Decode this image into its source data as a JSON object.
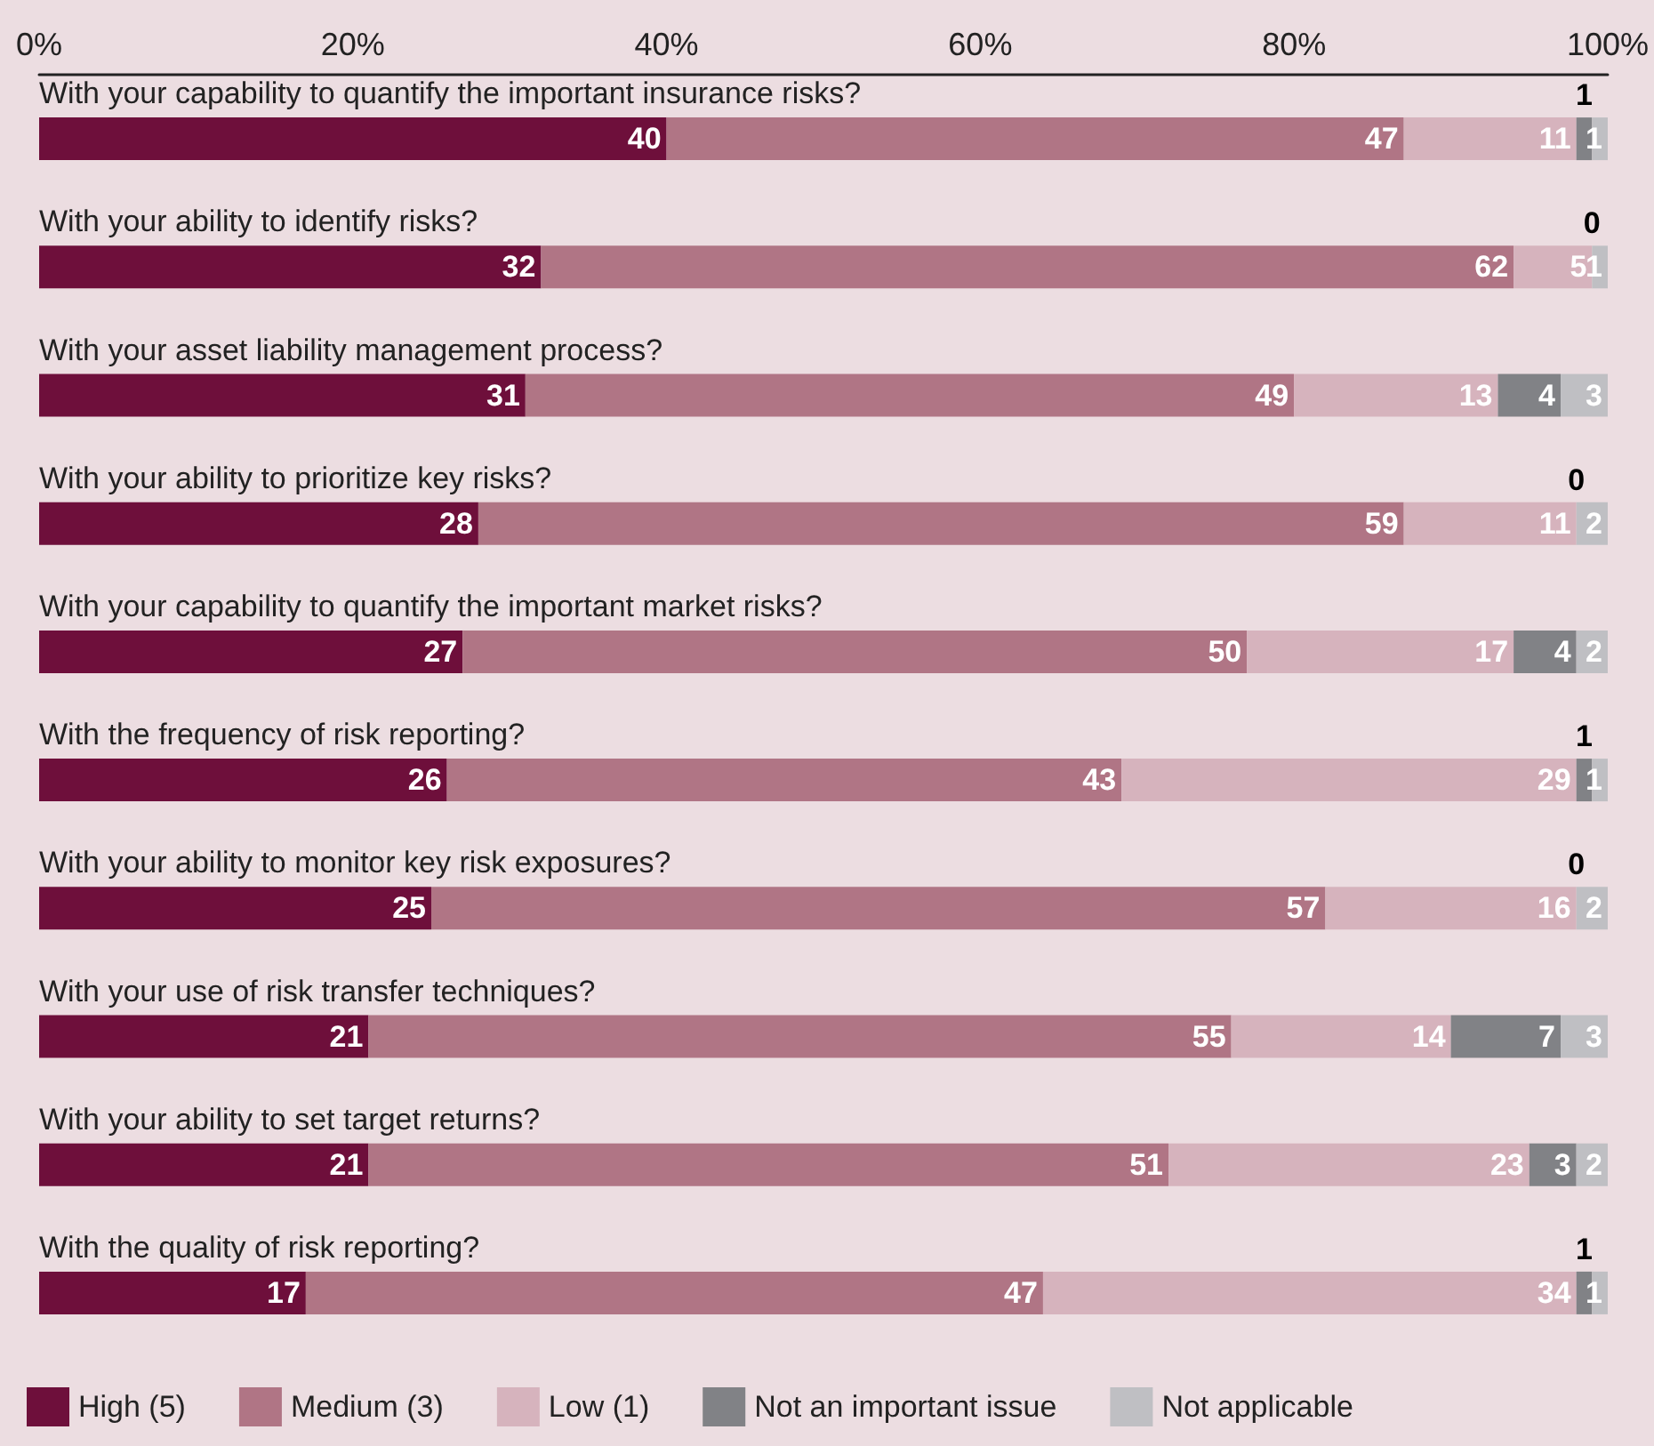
{
  "chart_data": {
    "type": "bar",
    "orientation": "horizontal",
    "stacked": true,
    "data_labels": true,
    "grid": false,
    "legend": "bottom left",
    "categories": [
      "With your capability to quantify the important insurance risks?",
      "With your ability to identify risks?",
      "With your asset liability management process?",
      "With your ability to prioritize key risks?",
      "With your capability to quantify the important market risks?",
      "With the frequency of risk reporting?",
      "With your ability to monitor key risk exposures?",
      "With your use of risk transfer techniques?",
      "With your ability to set target returns?",
      "With the quality of risk reporting?"
    ],
    "xlim": [
      0,
      100
    ],
    "xticks": [
      {
        "value": 0,
        "label": "0%"
      },
      {
        "value": 20,
        "label": "20%"
      },
      {
        "value": 40,
        "label": "40%"
      },
      {
        "value": 60,
        "label": "60%"
      },
      {
        "value": 80,
        "label": "80%"
      },
      {
        "value": 100,
        "label": "100%"
      }
    ],
    "series": [
      {
        "name": "High (5)",
        "color": "#6e0f3b",
        "values": [
          40,
          32,
          31,
          28,
          27,
          26,
          25,
          21,
          21,
          17
        ]
      },
      {
        "name": "Medium (3)",
        "color": "#b07585",
        "values": [
          47,
          62,
          49,
          59,
          50,
          43,
          57,
          55,
          51,
          47
        ]
      },
      {
        "name": "Low (1)",
        "color": "#d6b3bd",
        "values": [
          11,
          5,
          13,
          11,
          17,
          29,
          16,
          14,
          23,
          34
        ]
      },
      {
        "name": "Not an important issue",
        "color": "#818286",
        "values": [
          1,
          0,
          4,
          0,
          4,
          1,
          0,
          7,
          3,
          1
        ]
      },
      {
        "name": "Not applicable",
        "color": "#bfbfc3",
        "values": [
          1,
          1,
          3,
          2,
          2,
          1,
          2,
          3,
          2,
          1
        ]
      }
    ]
  }
}
